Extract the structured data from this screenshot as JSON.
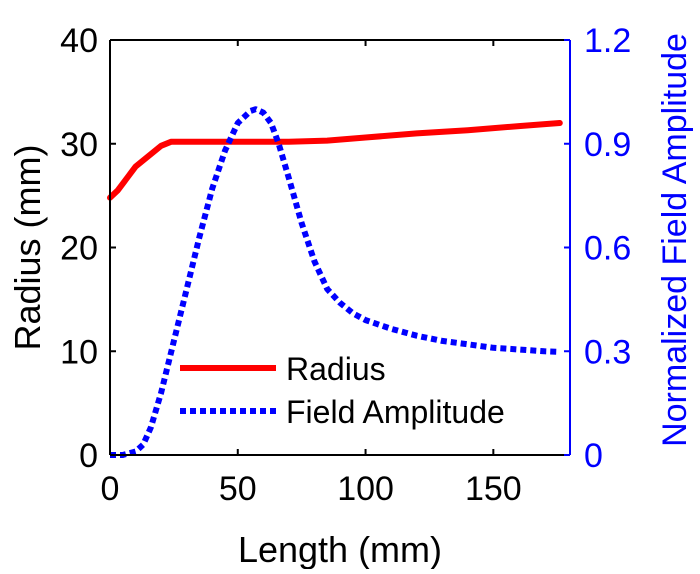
{
  "chart_data": {
    "type": "line",
    "title": "",
    "xlabel": "Length (mm)",
    "ylabel_left": "Radius (mm)",
    "ylabel_right": "Normalized Field Amplitude",
    "xlim": [
      0,
      180
    ],
    "ylim_left": [
      0,
      40
    ],
    "ylim_right": [
      0,
      1.2
    ],
    "x_ticks": [
      0,
      50,
      100,
      150
    ],
    "x_tick_labels": [
      "0",
      "50",
      "100",
      "150"
    ],
    "y_left_ticks": [
      0,
      10,
      20,
      30,
      40
    ],
    "y_left_tick_labels": [
      "0",
      "10",
      "20",
      "30",
      "40"
    ],
    "y_right_ticks": [
      0,
      0.3,
      0.6,
      0.9,
      1.2
    ],
    "y_right_tick_labels": [
      "0",
      "0.3",
      "0.6",
      "0.9",
      "1.2"
    ],
    "grid": false,
    "legend_position": "lower-left",
    "series": [
      {
        "name": "Radius",
        "axis": "left",
        "color": "#ff0000",
        "style": "solid",
        "x": [
          0,
          3,
          10,
          20,
          24,
          30,
          50,
          70,
          85,
          100,
          120,
          140,
          160,
          176
        ],
        "y": [
          24.8,
          25.5,
          27.8,
          29.8,
          30.2,
          30.2,
          30.2,
          30.2,
          30.3,
          30.6,
          31.0,
          31.3,
          31.7,
          32.0
        ]
      },
      {
        "name": "Field Amplitude",
        "axis": "right",
        "color": "#0000ff",
        "style": "dotted",
        "x": [
          0,
          5,
          10,
          13,
          16,
          20,
          25,
          30,
          35,
          40,
          45,
          50,
          55,
          57,
          60,
          63,
          66,
          70,
          75,
          80,
          85,
          90,
          95,
          100,
          110,
          120,
          130,
          140,
          150,
          160,
          170,
          176
        ],
        "y": [
          0.0,
          0.0,
          0.01,
          0.03,
          0.08,
          0.18,
          0.33,
          0.48,
          0.63,
          0.77,
          0.88,
          0.96,
          0.995,
          1.0,
          0.99,
          0.96,
          0.9,
          0.8,
          0.67,
          0.56,
          0.48,
          0.44,
          0.41,
          0.39,
          0.365,
          0.345,
          0.33,
          0.32,
          0.31,
          0.305,
          0.3,
          0.298
        ]
      }
    ]
  }
}
